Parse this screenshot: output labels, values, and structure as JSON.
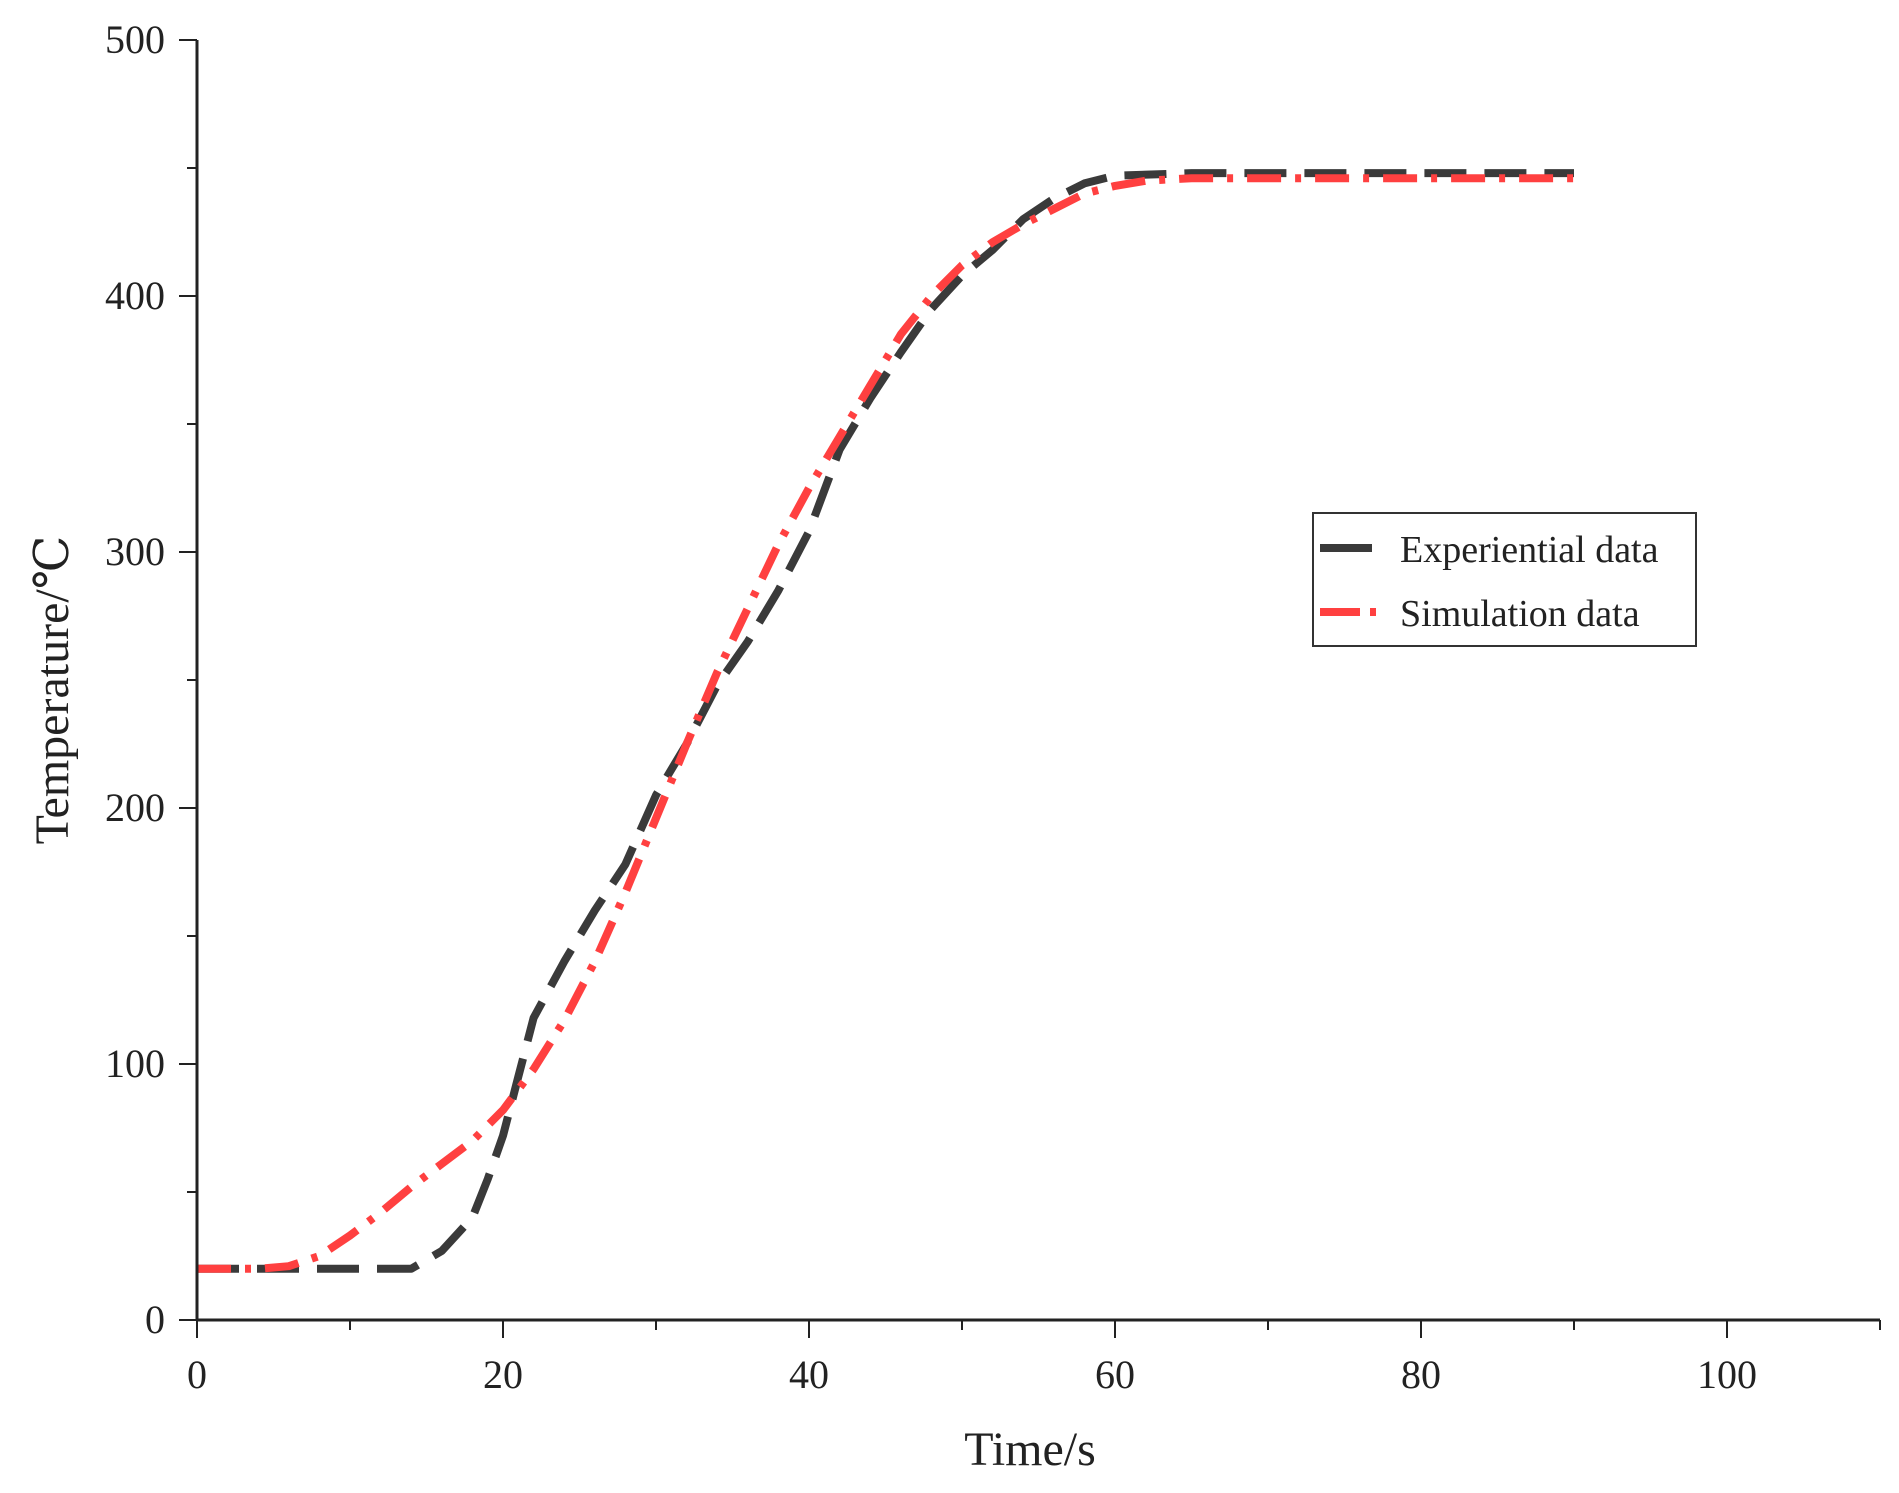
{
  "chart_data": {
    "type": "line",
    "title": "",
    "xlabel": "Time/s",
    "ylabel": "Temperature/℃",
    "xlim": [
      0,
      110
    ],
    "ylim": [
      0,
      500
    ],
    "xticks": [
      0,
      20,
      40,
      60,
      80,
      100
    ],
    "yticks": [
      0,
      100,
      200,
      300,
      400,
      500
    ],
    "grid": false,
    "legend_position": "right",
    "series": [
      {
        "name": "Experiential data",
        "color": "#3a3a3a",
        "style": "dashed",
        "x": [
          0,
          3,
          6,
          8,
          10,
          12,
          14,
          16,
          18,
          19,
          20,
          21,
          22,
          24,
          26,
          28,
          30,
          32,
          34,
          36,
          38,
          40,
          42,
          44,
          46,
          48,
          50,
          52,
          54,
          56,
          58,
          60,
          65,
          70,
          75,
          80,
          85,
          90
        ],
        "y": [
          20,
          20,
          20,
          20,
          20,
          20,
          20,
          27,
          40,
          55,
          72,
          95,
          118,
          140,
          160,
          178,
          205,
          225,
          248,
          265,
          285,
          308,
          340,
          360,
          378,
          395,
          408,
          418,
          430,
          438,
          444,
          447,
          448,
          448,
          448,
          448,
          448,
          448
        ]
      },
      {
        "name": "Simulation data",
        "color": "#ff4040",
        "style": "dashdot",
        "x": [
          0,
          2,
          4,
          6,
          8,
          10,
          12,
          14,
          16,
          18,
          20,
          22,
          24,
          26,
          28,
          30,
          32,
          34,
          36,
          38,
          40,
          42,
          44,
          46,
          48,
          50,
          52,
          54,
          56,
          58,
          60,
          62,
          65,
          70,
          75,
          80,
          85,
          90
        ],
        "y": [
          20,
          20,
          20,
          21,
          25,
          33,
          42,
          52,
          61,
          70,
          82,
          98,
          117,
          140,
          167,
          196,
          225,
          253,
          278,
          303,
          325,
          345,
          365,
          385,
          400,
          412,
          421,
          428,
          434,
          440,
          443,
          445,
          446,
          446,
          446,
          446,
          446,
          446
        ]
      }
    ]
  }
}
